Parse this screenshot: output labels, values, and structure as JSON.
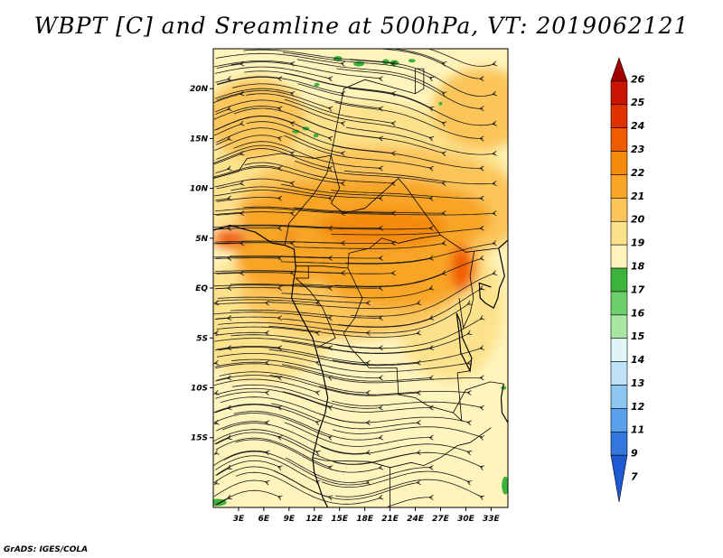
{
  "title": "WBPT [C] and Sreamline at 500hPa, VT: 2019062121",
  "credit": "GrADS: IGES/COLA",
  "map": {
    "lon_range": [
      0,
      35
    ],
    "lat_range": [
      -22,
      24
    ],
    "lon_ticks": [
      {
        "value": 3,
        "label": "3E"
      },
      {
        "value": 6,
        "label": "6E"
      },
      {
        "value": 9,
        "label": "9E"
      },
      {
        "value": 12,
        "label": "12E"
      },
      {
        "value": 15,
        "label": "15E"
      },
      {
        "value": 18,
        "label": "18E"
      },
      {
        "value": 21,
        "label": "21E"
      },
      {
        "value": 24,
        "label": "24E"
      },
      {
        "value": 27,
        "label": "27E"
      },
      {
        "value": 30,
        "label": "30E"
      },
      {
        "value": 33,
        "label": "33E"
      }
    ],
    "lat_ticks": [
      {
        "value": 20,
        "label": "20N"
      },
      {
        "value": 15,
        "label": "15N"
      },
      {
        "value": 10,
        "label": "10N"
      },
      {
        "value": 5,
        "label": "5N"
      },
      {
        "value": 0,
        "label": "EQ"
      },
      {
        "value": -5,
        "label": "5S"
      },
      {
        "value": -10,
        "label": "10S"
      },
      {
        "value": -15,
        "label": "15S"
      }
    ]
  },
  "colorbar": {
    "levels": [
      "26",
      "25",
      "24",
      "23",
      "22",
      "21",
      "20",
      "19",
      "18",
      "17",
      "16",
      "15",
      "14",
      "13",
      "12",
      "11",
      "9",
      "7"
    ],
    "colors": [
      "#a50000",
      "#c81400",
      "#e03200",
      "#f05a00",
      "#f58a0a",
      "#f8a528",
      "#fbc55a",
      "#fde28c",
      "#fff4bc",
      "#3cb43c",
      "#6ccf6c",
      "#a8e6a3",
      "#e0f5f5",
      "#bfe2f8",
      "#8ec6f2",
      "#5aa0ea",
      "#3278dc",
      "#1e5ad2"
    ]
  },
  "fields": {
    "wbpt_colors": {
      "c18": "#fff4bc",
      "c19": "#fde28c",
      "c20": "#fbc55a",
      "c21": "#f8a528",
      "c22": "#f58a0a",
      "c23": "#f05a00",
      "c17": "#3cb43c"
    }
  }
}
